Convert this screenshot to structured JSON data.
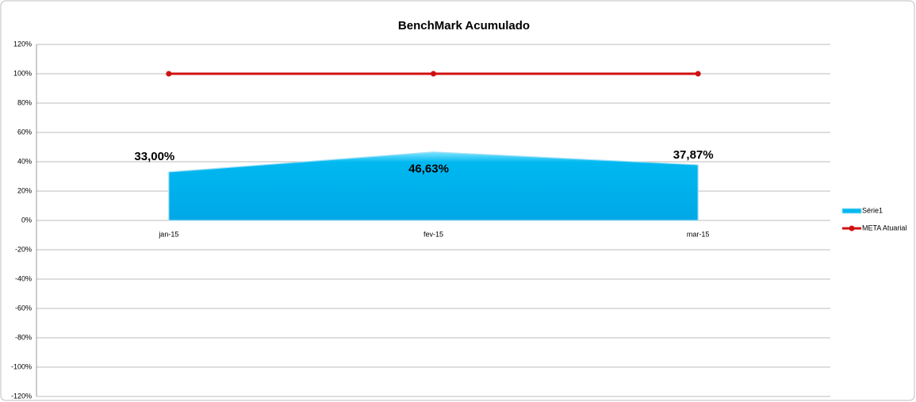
{
  "chart_data": {
    "type": "area",
    "title": "BenchMark Acumulado",
    "categories": [
      "jan-15",
      "fev-15",
      "mar-15"
    ],
    "series": [
      {
        "name": "Série1",
        "type": "area",
        "color": "#00b8f0",
        "values": [
          33.0,
          46.63,
          37.87
        ],
        "value_labels": [
          "33,00%",
          "46,63%",
          "37,87%"
        ]
      },
      {
        "name": "META Atuarial",
        "type": "line",
        "color": "#d01010",
        "values": [
          100,
          100,
          100
        ]
      }
    ],
    "ylim": [
      -120,
      120
    ],
    "yticks": [
      {
        "value": -120,
        "label": "-120%"
      },
      {
        "value": -100,
        "label": "-100%"
      },
      {
        "value": -80,
        "label": "-80%"
      },
      {
        "value": -60,
        "label": "-60%"
      },
      {
        "value": -40,
        "label": "-40%"
      },
      {
        "value": -20,
        "label": "-20%"
      },
      {
        "value": 0,
        "label": "0%"
      },
      {
        "value": 20,
        "label": "20%"
      },
      {
        "value": 40,
        "label": "40%"
      },
      {
        "value": 60,
        "label": "60%"
      },
      {
        "value": 80,
        "label": "80%"
      },
      {
        "value": 100,
        "label": "100%"
      },
      {
        "value": 120,
        "label": "120%"
      }
    ],
    "grid": true,
    "legend": "right"
  }
}
